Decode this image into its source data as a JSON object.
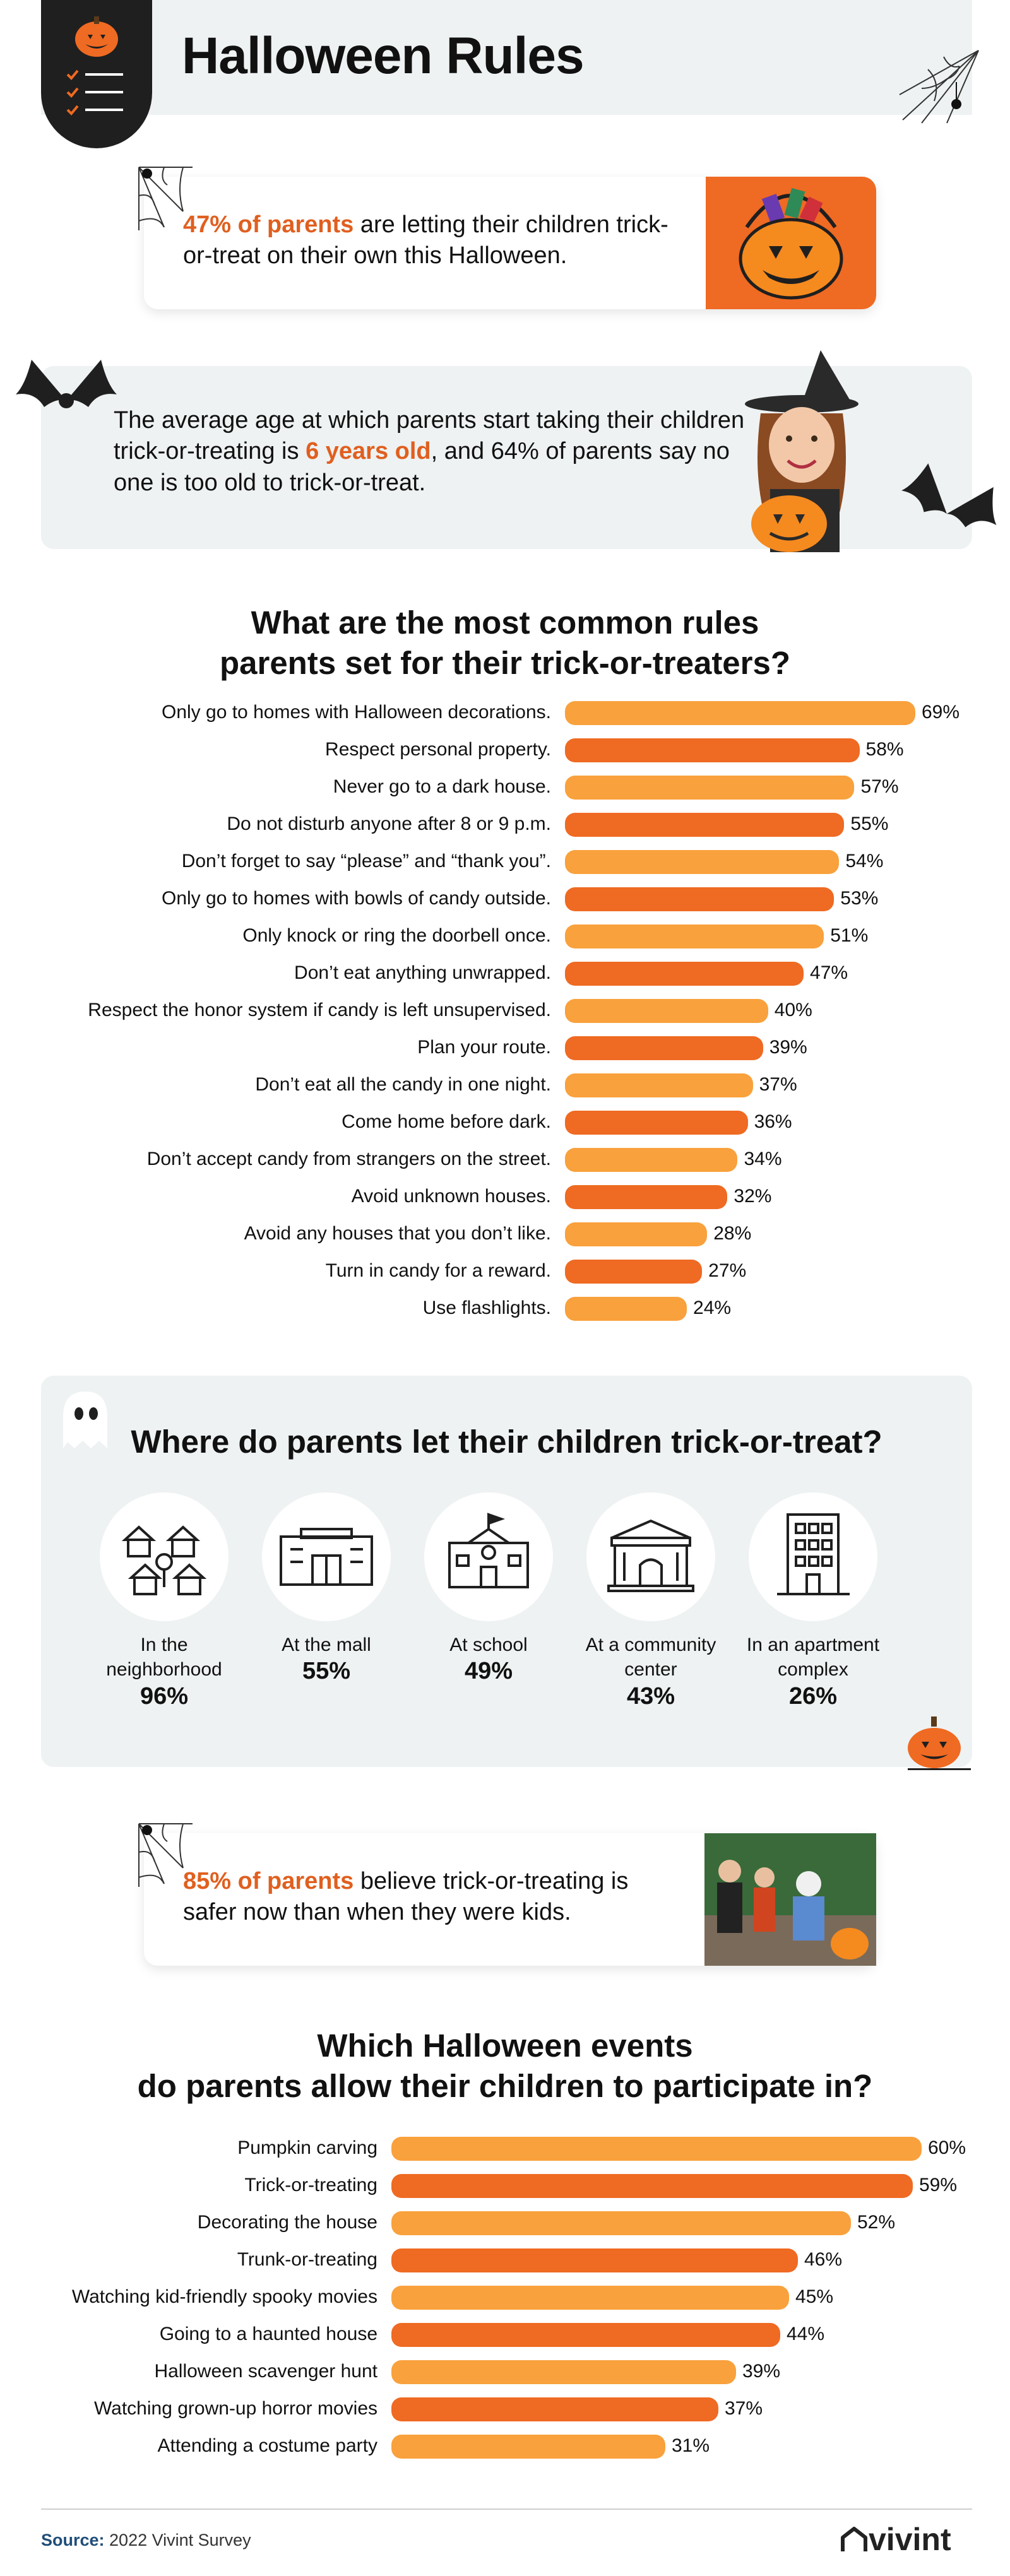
{
  "header": {
    "title": "Halloween Rules"
  },
  "stat_cards": {
    "alone": {
      "highlight": "47% of parents",
      "text": " are letting their children trick-or-treat on their own this Halloween."
    },
    "age": {
      "before": "The average age at which parents start taking their children trick-or-treating is ",
      "highlight": "6 years old",
      "after": ", and 64% of parents say no one is too old to trick-or-treat."
    },
    "safer": {
      "highlight": "85% of parents",
      "text": " believe trick-or-treating is safer now than when they were kids."
    }
  },
  "rules_section": {
    "heading_line1": "What are the most common rules",
    "heading_line2": "parents set for their trick-or-treaters?"
  },
  "locations_section": {
    "heading": "Where do parents let their children trick-or-treat?",
    "items": [
      {
        "label": "In the neighborhood",
        "value": "96%",
        "icon": "houses-icon"
      },
      {
        "label": "At the mall",
        "value": "55%",
        "icon": "mall-icon"
      },
      {
        "label": "At school",
        "value": "49%",
        "icon": "school-icon"
      },
      {
        "label": "At a community center",
        "value": "43%",
        "icon": "community-center-icon"
      },
      {
        "label": "In an apartment complex",
        "value": "26%",
        "icon": "apartment-icon"
      }
    ]
  },
  "events_section": {
    "heading_line1": "Which Halloween events",
    "heading_line2": "do parents allow their children to participate in?"
  },
  "footer": {
    "source_label": "Source:",
    "source_text": " 2022 Vivint Survey",
    "logo": "vivint"
  },
  "colors": {
    "orange_light": "#f9a13c",
    "orange_dark": "#ef6a22",
    "accent": "#e05f1f",
    "panel": "#eef2f2"
  },
  "chart_data": [
    {
      "type": "bar",
      "orientation": "horizontal",
      "categories": [
        "Only go to homes with Halloween decorations.",
        "Respect personal property.",
        "Never go to a dark house.",
        "Do not disturb anyone after 8 or 9 p.m.",
        "Don’t forget to say “please” and “thank you”.",
        "Only go to homes with bowls of candy outside.",
        "Only knock or ring the doorbell once.",
        "Don’t eat anything unwrapped.",
        "Respect the honor system if candy is left unsupervised.",
        "Plan your route.",
        "Don’t eat all the candy in one night.",
        "Come home before dark.",
        "Don’t accept candy from strangers on the street.",
        "Avoid unknown houses.",
        "Avoid any houses that you don’t like.",
        "Turn in candy for a reward.",
        "Use flashlights."
      ],
      "values": [
        69,
        58,
        57,
        55,
        54,
        53,
        51,
        47,
        40,
        39,
        37,
        36,
        34,
        32,
        28,
        27,
        24
      ],
      "unit": "%"
    },
    {
      "type": "bar",
      "orientation": "horizontal",
      "categories": [
        "Pumpkin carving",
        "Trick-or-treating",
        "Decorating the house",
        "Trunk-or-treating",
        "Watching kid-friendly spooky movies",
        "Going to a haunted house",
        "Halloween scavenger hunt",
        "Watching grown-up horror movies",
        "Attending a costume party"
      ],
      "values": [
        60,
        59,
        52,
        46,
        45,
        44,
        39,
        37,
        31
      ],
      "unit": "%"
    }
  ]
}
